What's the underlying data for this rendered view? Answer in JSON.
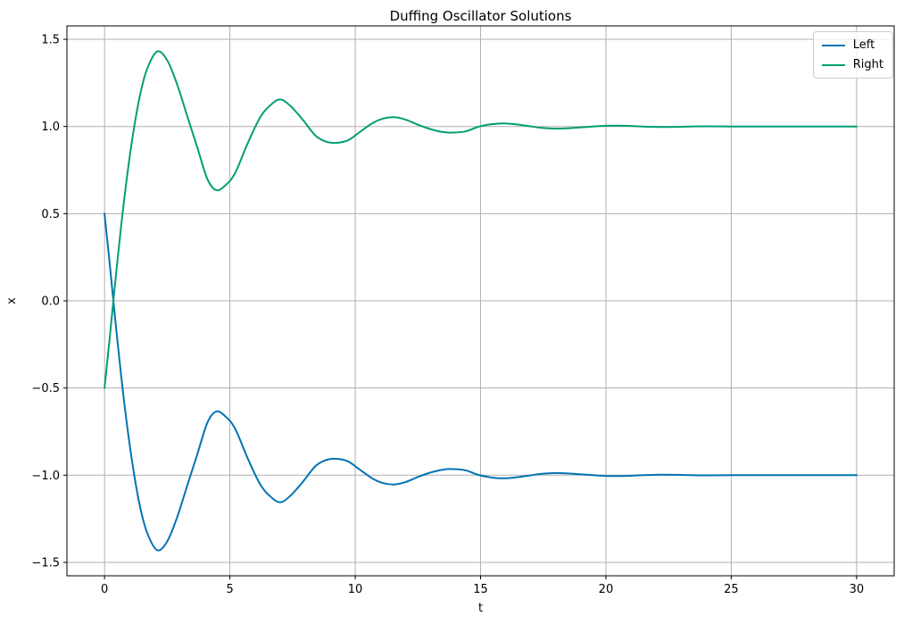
{
  "chart_data": {
    "type": "line",
    "title": "Duffing Oscillator Solutions",
    "xlabel": "t",
    "ylabel": "x",
    "xlim": [
      -1.5,
      31.5
    ],
    "ylim": [
      -1.577,
      1.577
    ],
    "grid": true,
    "legend_position": "upper right",
    "colors": {
      "left_line": "#0173b2",
      "right_line": "#029e73",
      "grid_line": "#b0b0b0",
      "spine": "#000000",
      "legend_border": "#cccccc",
      "background": "#ffffff"
    },
    "xticks": [
      {
        "v": 0,
        "label": "0"
      },
      {
        "v": 5,
        "label": "5"
      },
      {
        "v": 10,
        "label": "10"
      },
      {
        "v": 15,
        "label": "15"
      },
      {
        "v": 20,
        "label": "20"
      },
      {
        "v": 25,
        "label": "25"
      },
      {
        "v": 30,
        "label": "30"
      }
    ],
    "yticks": [
      {
        "v": -1.5,
        "label": "−1.5"
      },
      {
        "v": -1.0,
        "label": "−1.0"
      },
      {
        "v": -0.5,
        "label": "−0.5"
      },
      {
        "v": 0.0,
        "label": "0.0"
      },
      {
        "v": 0.5,
        "label": "0.5"
      },
      {
        "v": 1.0,
        "label": "1.0"
      },
      {
        "v": 1.5,
        "label": "1.5"
      }
    ],
    "x": [
      0,
      0.2,
      0.5,
      0.8,
      1.1,
      1.4,
      1.7,
      2.1,
      2.5,
      2.9,
      3.3,
      3.7,
      4.1,
      4.45,
      4.8,
      5.2,
      5.7,
      6.2,
      6.6,
      7.0,
      7.4,
      7.9,
      8.4,
      8.8,
      9.2,
      9.7,
      10.2,
      10.7,
      11.1,
      11.55,
      12.0,
      12.5,
      13.0,
      13.5,
      13.9,
      14.4,
      14.9,
      15.4,
      15.9,
      16.4,
      16.9,
      17.4,
      17.9,
      18.4,
      18.9,
      19.4,
      20.0,
      20.5,
      21.0,
      21.6,
      22.2,
      22.8,
      23.4,
      24.0,
      25.0,
      26.0,
      27.0,
      28.0,
      29.0,
      30.0
    ],
    "series": [
      {
        "name": "Left",
        "color": "#0173b2",
        "y": [
          0.5,
          0.22,
          -0.21,
          -0.6,
          -0.92,
          -1.17,
          -1.33,
          -1.43,
          -1.38,
          -1.24,
          -1.06,
          -0.88,
          -0.7,
          -0.635,
          -0.66,
          -0.73,
          -0.9,
          -1.05,
          -1.12,
          -1.155,
          -1.12,
          -1.04,
          -0.95,
          -0.915,
          -0.906,
          -0.92,
          -0.97,
          -1.02,
          -1.045,
          -1.053,
          -1.04,
          -1.01,
          -0.985,
          -0.968,
          -0.965,
          -0.972,
          -0.998,
          -1.012,
          -1.018,
          -1.013,
          -1.003,
          -0.993,
          -0.988,
          -0.989,
          -0.994,
          -0.999,
          -1.004,
          -1.005,
          -1.003,
          -0.999,
          -0.997,
          -0.998,
          -1.0,
          -1.001,
          -1.0,
          -1.0,
          -1.0,
          -1.0,
          -1.0,
          -1.0
        ]
      },
      {
        "name": "Right",
        "color": "#029e73",
        "y": [
          -0.5,
          -0.22,
          0.21,
          0.6,
          0.92,
          1.17,
          1.33,
          1.43,
          1.38,
          1.24,
          1.06,
          0.88,
          0.7,
          0.635,
          0.66,
          0.73,
          0.9,
          1.05,
          1.12,
          1.155,
          1.12,
          1.04,
          0.95,
          0.915,
          0.906,
          0.92,
          0.97,
          1.02,
          1.045,
          1.053,
          1.04,
          1.01,
          0.985,
          0.968,
          0.965,
          0.972,
          0.998,
          1.012,
          1.018,
          1.013,
          1.003,
          0.993,
          0.988,
          0.989,
          0.994,
          0.999,
          1.004,
          1.005,
          1.003,
          0.999,
          0.997,
          0.998,
          1.0,
          1.001,
          1.0,
          1.0,
          1.0,
          1.0,
          1.0,
          1.0
        ]
      }
    ]
  }
}
